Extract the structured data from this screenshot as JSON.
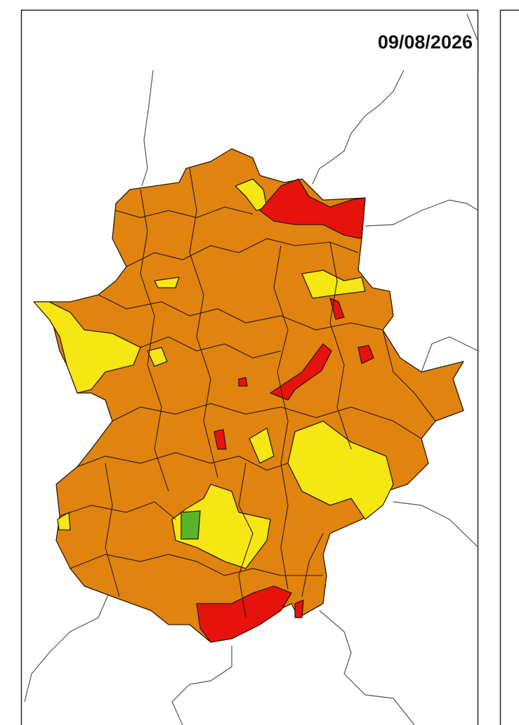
{
  "date": "09/08/2026"
}
